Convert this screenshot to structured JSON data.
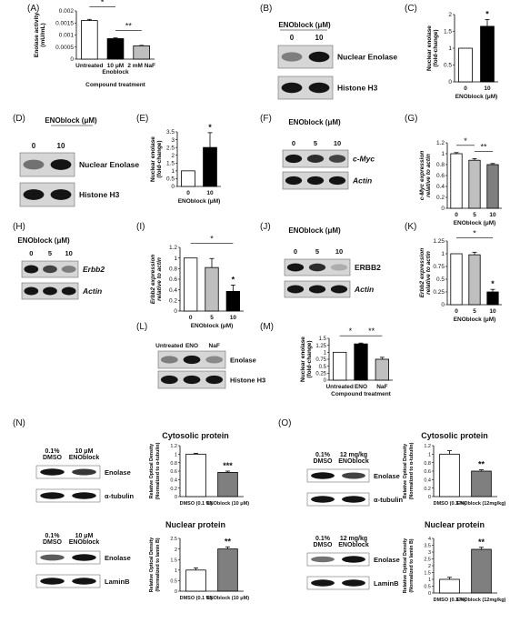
{
  "panels": {
    "A": {
      "letter": "(A)",
      "chart_data": {
        "type": "bar",
        "categories": [
          "Untreated",
          "10 μM Enoblock",
          "2 mM NaF"
        ],
        "values": [
          0.0016,
          0.00085,
          0.00055
        ],
        "errors": [
          5e-05,
          3e-05,
          2e-05
        ],
        "ylim": [
          0,
          0.002
        ],
        "yticks": [
          "0.002",
          "0.0015",
          "0.001",
          "0.0005",
          "0"
        ],
        "ylabel": "Enolase activity (mU/mL)",
        "xlabel": "Compound treatment",
        "fills": [
          "#ffffff",
          "#000000",
          "#bfbfbf"
        ],
        "sig": [
          {
            "from": 0,
            "to": 1,
            "label": "*"
          },
          {
            "from": 1,
            "to": 2,
            "label": "**"
          }
        ]
      }
    },
    "B": {
      "letter": "(B)",
      "header": "ENOblock (μM)",
      "lanes": [
        "0",
        "10"
      ],
      "bands": [
        {
          "label": "Nuclear Enolase",
          "intensity": [
            0.55,
            1
          ]
        },
        {
          "label": "Histone H3",
          "intensity": [
            1,
            1
          ]
        }
      ]
    },
    "C": {
      "letter": "(C)",
      "chart_data": {
        "type": "bar",
        "categories": [
          "0",
          "10"
        ],
        "values": [
          1,
          1.65
        ],
        "errors": [
          0,
          0.2
        ],
        "ylim": [
          0,
          2
        ],
        "yticks": [
          "2",
          "1.5",
          "1",
          "0.5",
          "0"
        ],
        "ylabel": "Nuclear enolase (fold-change)",
        "xlabel": "ENOblock (μM)",
        "fills": [
          "#ffffff",
          "#000000"
        ],
        "stars": [
          "",
          "*"
        ]
      }
    },
    "D": {
      "letter": "(D)",
      "header": "ENOblock (μM)",
      "lanes": [
        "0",
        "10"
      ],
      "bands": [
        {
          "label": "Nuclear Enolase",
          "intensity": [
            0.6,
            1
          ]
        },
        {
          "label": "Histone H3",
          "intensity": [
            1,
            1
          ]
        }
      ]
    },
    "E": {
      "letter": "(E)",
      "chart_data": {
        "type": "bar",
        "categories": [
          "0",
          "10"
        ],
        "values": [
          1,
          2.5
        ],
        "errors": [
          0,
          0.95
        ],
        "ylim": [
          0,
          3.5
        ],
        "yticks": [
          "3.5",
          "3",
          "2.5",
          "2",
          "1.5",
          "1",
          "0.5",
          "0"
        ],
        "ylabel": "Nuclear enolase (fold-change)",
        "xlabel": "ENOblock (μM)",
        "fills": [
          "#ffffff",
          "#000000"
        ],
        "stars": [
          "",
          "*"
        ]
      }
    },
    "F": {
      "letter": "(F)",
      "header": "ENOblock (μM)",
      "lanes": [
        "0",
        "5",
        "10"
      ],
      "bands": [
        {
          "label": "c-Myc",
          "intensity": [
            1,
            0.9,
            0.8
          ]
        },
        {
          "label": "Actin",
          "intensity": [
            1,
            1,
            1
          ]
        }
      ]
    },
    "G": {
      "letter": "(G)",
      "chart_data": {
        "type": "bar",
        "categories": [
          "0",
          "5",
          "10"
        ],
        "values": [
          1,
          0.88,
          0.8
        ],
        "errors": [
          0.02,
          0.03,
          0.02
        ],
        "ylim": [
          0,
          1.2
        ],
        "yticks": [
          "1.2",
          "1",
          "0.8",
          "0.6",
          "0.4",
          "0.2",
          "0"
        ],
        "ylabel": "c-Myc expression relative to actin",
        "xlabel": "ENOblock (μM)",
        "fills": [
          "#ffffff",
          "#bfbfbf",
          "#7f7f7f"
        ],
        "sig": [
          {
            "from": 0,
            "to": 1,
            "label": "*"
          },
          {
            "from": 1,
            "to": 2,
            "label": "**"
          }
        ]
      }
    },
    "H": {
      "letter": "(H)",
      "header": "ENOblock (μM)",
      "lanes": [
        "0",
        "5",
        "10"
      ],
      "bands": [
        {
          "label": "Erbb2",
          "intensity": [
            1,
            0.8,
            0.55
          ]
        },
        {
          "label": "Actin",
          "intensity": [
            1,
            1,
            1
          ]
        }
      ]
    },
    "I": {
      "letter": "(I)",
      "chart_data": {
        "type": "bar",
        "categories": [
          "0",
          "5",
          "10"
        ],
        "values": [
          1,
          0.82,
          0.37
        ],
        "errors": [
          0,
          0.17,
          0.12
        ],
        "ylim": [
          0,
          1.2
        ],
        "yticks": [
          "1.2",
          "1",
          "0.8",
          "0.6",
          "0.4",
          "0.2",
          "0"
        ],
        "ylabel": "Erbb2 expression relative to actin",
        "xlabel": "ENOblock (μM)",
        "fills": [
          "#ffffff",
          "#bfbfbf",
          "#000000"
        ],
        "stars": [
          "",
          "",
          "*"
        ],
        "sig": [
          {
            "from": 0,
            "to": 2,
            "label": "*"
          }
        ]
      }
    },
    "J": {
      "letter": "(J)",
      "header": "ENOblock (μM)",
      "lanes": [
        "0",
        "5",
        "10"
      ],
      "bands": [
        {
          "label": "ERBB2",
          "intensity": [
            1,
            0.9,
            0.35
          ]
        },
        {
          "label": "Actin",
          "intensity": [
            1,
            1,
            1
          ]
        }
      ]
    },
    "K": {
      "letter": "(K)",
      "chart_data": {
        "type": "bar",
        "categories": [
          "0",
          "5",
          "10"
        ],
        "values": [
          1,
          0.98,
          0.25
        ],
        "errors": [
          0,
          0.05,
          0.05
        ],
        "ylim": [
          0,
          1.25
        ],
        "yticks": [
          "1.25",
          "1",
          "0.75",
          "0.5",
          "0.25",
          "0"
        ],
        "ylabel": "Erbb2 expression relative to actin",
        "xlabel": "ENOblock (μM)",
        "fills": [
          "#ffffff",
          "#bfbfbf",
          "#000000"
        ],
        "stars": [
          "",
          "",
          "*"
        ],
        "sig": [
          {
            "from": 0,
            "to": 2,
            "label": "*"
          }
        ]
      }
    },
    "L": {
      "letter": "(L)",
      "lanes": [
        "Untreated",
        "ENO",
        "NaF"
      ],
      "bands": [
        {
          "label": "Enolase",
          "intensity": [
            0.55,
            1,
            0.5
          ]
        },
        {
          "label": "Histone H3",
          "intensity": [
            1,
            1,
            1
          ]
        }
      ]
    },
    "M": {
      "letter": "(M)",
      "chart_data": {
        "type": "bar",
        "categories": [
          "Untreated",
          "ENO",
          "NaF"
        ],
        "values": [
          1,
          1.3,
          0.75
        ],
        "errors": [
          0,
          0.03,
          0.07
        ],
        "ylim": [
          0,
          1.5
        ],
        "yticks": [
          "1.5",
          "1.25",
          "1",
          "0.75",
          "0.5",
          "0.25",
          "0"
        ],
        "ylabel": "Nuclear enolase (fold-change)",
        "xlabel": "Compound treatment",
        "fills": [
          "#ffffff",
          "#000000",
          "#bfbfbf"
        ],
        "sig": [
          {
            "from": 0,
            "to": 1,
            "label": "*"
          },
          {
            "from": 1,
            "to": 2,
            "label": "**"
          }
        ]
      }
    },
    "N": {
      "letter": "(N)",
      "top": {
        "title": "Cytosolic protein",
        "lanes": [
          "0.1% DMSO",
          "10 μM ENOblock"
        ],
        "bands": [
          {
            "label": "Enolase",
            "intensity": [
              1,
              0.85
            ]
          },
          {
            "label": "α-tubulin",
            "intensity": [
              1,
              1
            ]
          }
        ],
        "chart_data": {
          "type": "bar",
          "categories": [
            "DMSO (0.1 %)",
            "ENOblock (10 μM)"
          ],
          "values": [
            1,
            0.57
          ],
          "errors": [
            0.02,
            0.03
          ],
          "ylim": [
            0,
            1.2
          ],
          "yticks": [
            "1.2",
            "1",
            "0.8",
            "0.6",
            "0.4",
            "0.2",
            "0"
          ],
          "ylabel": "Relative Optical Density (Normalized to α-tubulin)",
          "fills": [
            "#ffffff",
            "#7f7f7f"
          ],
          "stars": [
            "",
            "***"
          ]
        }
      },
      "bottom": {
        "title": "Nuclear protein",
        "lanes": [
          "0.1% DMSO",
          "10 μM ENOblock"
        ],
        "bands": [
          {
            "label": "Enolase",
            "intensity": [
              0.7,
              1
            ]
          },
          {
            "label": "LaminB",
            "intensity": [
              1,
              1
            ]
          }
        ],
        "chart_data": {
          "type": "bar",
          "categories": [
            "DMSO (0.1 %)",
            "ENOblock (10 μM)"
          ],
          "values": [
            1,
            2
          ],
          "errors": [
            0.1,
            0.1
          ],
          "ylim": [
            0,
            2.5
          ],
          "yticks": [
            "2.5",
            "2",
            "1.5",
            "1",
            "0.5",
            "0"
          ],
          "ylabel": "Relative Optical Density (Normalized to lamin B)",
          "fills": [
            "#ffffff",
            "#7f7f7f"
          ],
          "stars": [
            "",
            "**"
          ]
        }
      }
    },
    "O": {
      "letter": "(O)",
      "top": {
        "title": "Cytosolic protein",
        "lanes": [
          "0.1% DMSO",
          "12 mg/kg ENOblock"
        ],
        "bands": [
          {
            "label": "Enolase",
            "intensity": [
              1,
              0.8
            ]
          },
          {
            "label": "α-tubulin",
            "intensity": [
              1,
              1
            ]
          }
        ],
        "chart_data": {
          "type": "bar",
          "categories": [
            "DMSO (0.1 %)",
            "ENOblock (12mg/kg)"
          ],
          "values": [
            1,
            0.6
          ],
          "errors": [
            0.08,
            0.03
          ],
          "ylim": [
            0,
            1.2
          ],
          "yticks": [
            "1.2",
            "1",
            "0.8",
            "0.6",
            "0.4",
            "0.2",
            "0"
          ],
          "ylabel": "Relative Optical Density (Normalized to α-tubulin)",
          "fills": [
            "#ffffff",
            "#7f7f7f"
          ],
          "stars": [
            "",
            "**"
          ]
        }
      },
      "bottom": {
        "title": "Nuclear protein",
        "lanes": [
          "0.1% DMSO",
          "12 mg/kg ENOblock"
        ],
        "bands": [
          {
            "label": "Enolase",
            "intensity": [
              0.6,
              1
            ]
          },
          {
            "label": "LaminB",
            "intensity": [
              1,
              1
            ]
          }
        ],
        "chart_data": {
          "type": "bar",
          "categories": [
            "DMSO (0.1 %)",
            "ENOblock (12mg/kg)"
          ],
          "values": [
            1,
            3.2
          ],
          "errors": [
            0.15,
            0.15
          ],
          "ylim": [
            0,
            4
          ],
          "yticks": [
            "4",
            "3.5",
            "3",
            "2.5",
            "2",
            "1.5",
            "1",
            "0.5",
            "0"
          ],
          "ylabel": "Relative Optical Density (Normalized to lamin B)",
          "fills": [
            "#ffffff",
            "#7f7f7f"
          ],
          "stars": [
            "",
            "**"
          ]
        }
      }
    }
  }
}
